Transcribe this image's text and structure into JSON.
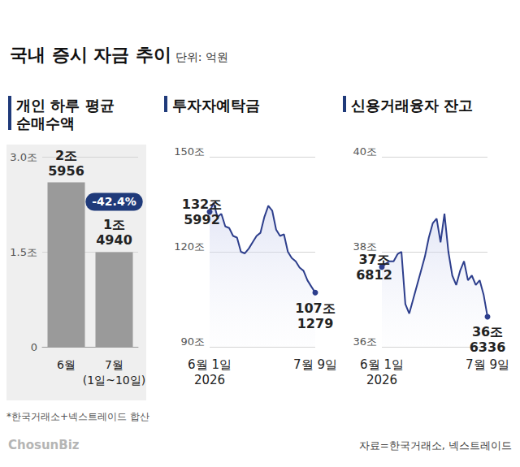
{
  "title": "국내 증시 자금 추이",
  "subtitle": "단위: 억원",
  "source": "자료=한국거래소, 넥스트레이드",
  "credit": "ChosunBiz",
  "chart_data": [
    {
      "type": "bar",
      "title": "개인 하루 평균 순매수액",
      "categories": [
        "6월",
        "7월\n(1일~10일)"
      ],
      "values": [
        2.5956,
        1.494
      ],
      "value_labels": [
        "2조\n5956",
        "1조\n4940"
      ],
      "data_labels": true,
      "color": "#9a9a9a",
      "ylim": [
        0,
        3
      ],
      "yticks": [
        0,
        {
          "value": 1.5,
          "label": "1.5조"
        },
        {
          "value": 3,
          "label": "3.0조"
        }
      ],
      "grid": true,
      "annotation": "-42.4%",
      "note": "*한국거래소+넥스트레이드 합산"
    },
    {
      "type": "line",
      "title": "투자자예탁금",
      "categories": [
        "6월 1일\n2026",
        null,
        null,
        null,
        null,
        null,
        null,
        null,
        null,
        null,
        null,
        null,
        null,
        null,
        null,
        null,
        null,
        null,
        null,
        null,
        null,
        null,
        null,
        null,
        null,
        null,
        null,
        "7월 9일"
      ],
      "values": [
        132.5992,
        135.5,
        131,
        132,
        128,
        127.5,
        125,
        124.5,
        120,
        119.5,
        121,
        123,
        125,
        126,
        131,
        134.5,
        133,
        127,
        125,
        125.5,
        120,
        118,
        117,
        115,
        114,
        111,
        109,
        107.1279
      ],
      "value_labels": [
        "132조\n5992",
        null,
        null,
        null,
        null,
        null,
        null,
        null,
        null,
        null,
        null,
        null,
        null,
        null,
        null,
        null,
        null,
        null,
        null,
        null,
        null,
        null,
        null,
        null,
        null,
        null,
        null,
        "107조\n1279"
      ],
      "data_labels": true,
      "color": "#2d3e8c",
      "ylim": [
        90,
        150
      ],
      "yticks": [
        {
          "value": 90,
          "label": "90조"
        },
        {
          "value": 120,
          "label": "120조"
        },
        {
          "value": 150,
          "label": "150조"
        }
      ],
      "grid": true
    },
    {
      "type": "line",
      "title": "신용거래융자 잔고",
      "categories": [
        "6월 1일\n2026",
        null,
        null,
        null,
        null,
        null,
        null,
        null,
        null,
        null,
        null,
        null,
        null,
        null,
        null,
        null,
        null,
        null,
        null,
        null,
        null,
        null,
        null,
        null,
        null,
        null,
        null,
        "7월 9일"
      ],
      "values": [
        37.6812,
        37.75,
        37.8,
        37.8,
        37.95,
        38.0,
        36.9,
        36.7,
        37.0,
        37.3,
        37.6,
        37.9,
        38.3,
        38.6,
        38.7,
        38.2,
        38.8,
        38.0,
        37.5,
        37.3,
        37.6,
        37.8,
        37.4,
        37.5,
        37.3,
        37.4,
        37.1,
        36.6336
      ],
      "value_labels": [
        "37조\n6812",
        null,
        null,
        null,
        null,
        null,
        null,
        null,
        null,
        null,
        null,
        null,
        null,
        null,
        null,
        null,
        null,
        null,
        null,
        null,
        null,
        null,
        null,
        null,
        null,
        null,
        null,
        "36조\n6336"
      ],
      "data_labels": true,
      "color": "#2d3e8c",
      "ylim": [
        36,
        40
      ],
      "yticks": [
        {
          "value": 36,
          "label": "36조"
        },
        {
          "value": 38,
          "label": "38조"
        },
        {
          "value": 40,
          "label": "40조"
        }
      ],
      "grid": true
    }
  ]
}
